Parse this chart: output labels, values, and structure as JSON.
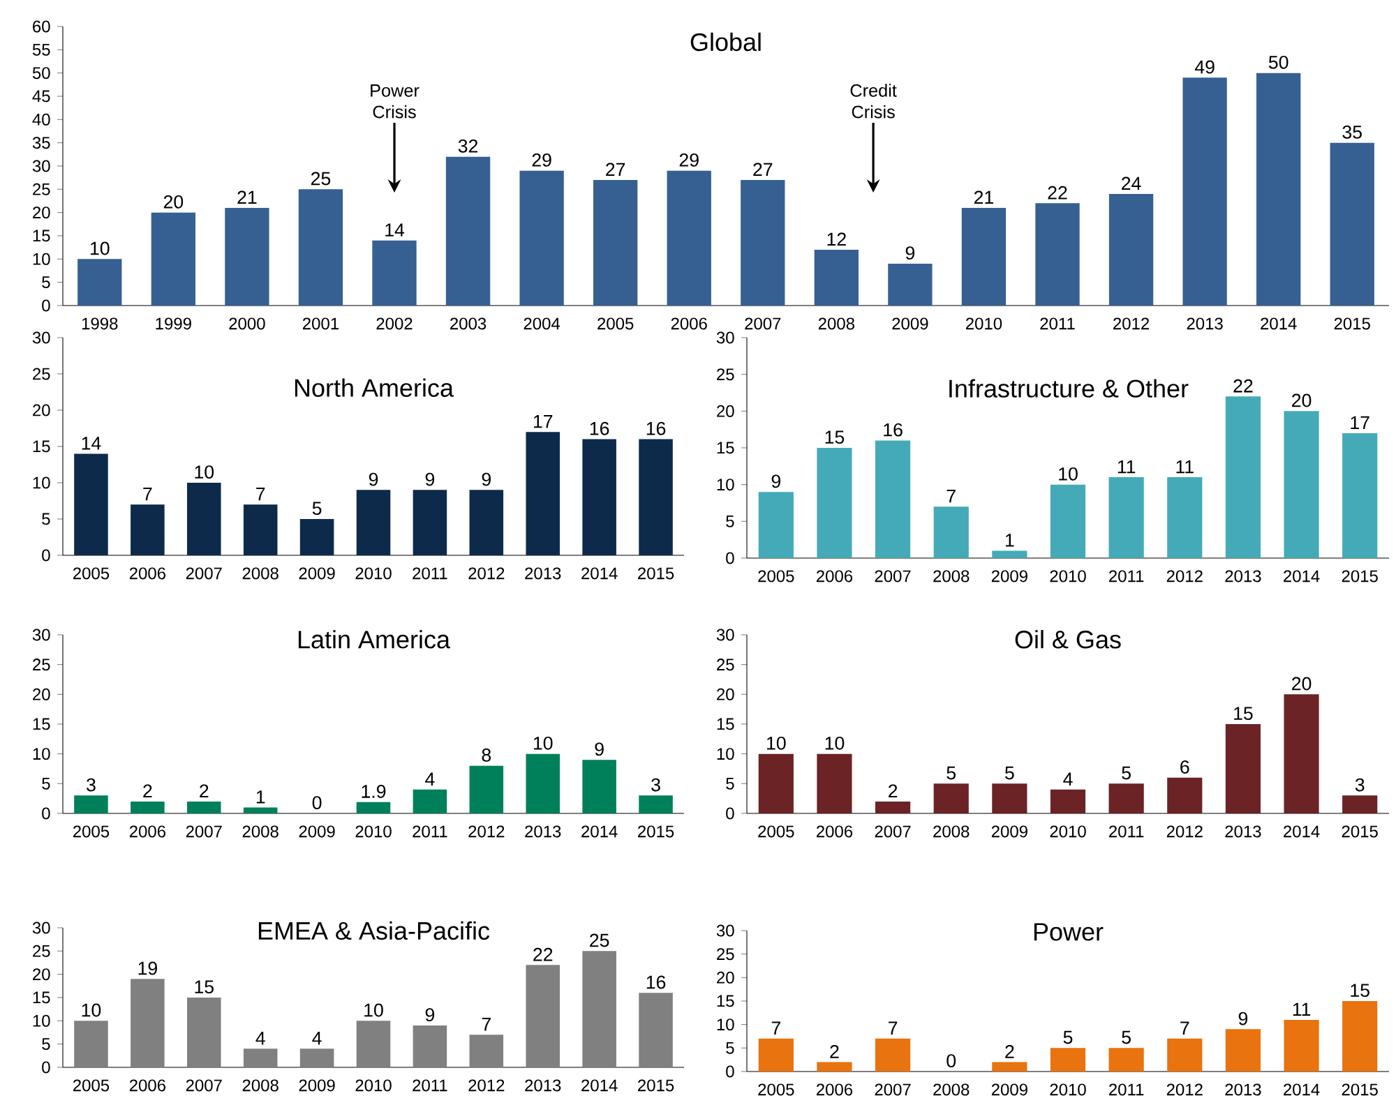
{
  "chart_data": [
    {
      "type": "bar",
      "title": "Global",
      "categories": [
        "1998",
        "1999",
        "2000",
        "2001",
        "2002",
        "2003",
        "2004",
        "2005",
        "2006",
        "2007",
        "2008",
        "2009",
        "2010",
        "2011",
        "2012",
        "2013",
        "2014",
        "2015"
      ],
      "values": [
        10,
        20,
        21,
        25,
        14,
        32,
        29,
        27,
        29,
        27,
        12,
        9,
        21,
        22,
        24,
        49,
        50,
        35
      ],
      "color": "#376092",
      "ylim": [
        0,
        60
      ],
      "yticks": [
        0,
        5,
        10,
        15,
        20,
        25,
        30,
        35,
        40,
        45,
        50,
        55,
        60
      ],
      "data_labels": true,
      "annotations": [
        "Power Crisis",
        "Credit Crisis"
      ]
    },
    {
      "type": "bar",
      "title": "North America",
      "categories": [
        "2005",
        "2006",
        "2007",
        "2008",
        "2009",
        "2010",
        "2011",
        "2012",
        "2013",
        "2014",
        "2015"
      ],
      "values": [
        14,
        7,
        10,
        7,
        5,
        9,
        9,
        9,
        17,
        16,
        16
      ],
      "color": "#0d2a4a",
      "ylim": [
        0,
        30
      ],
      "yticks": [
        0,
        5,
        10,
        15,
        20,
        25,
        30
      ],
      "data_labels": true
    },
    {
      "type": "bar",
      "title": "Infrastructure & Other",
      "categories": [
        "2005",
        "2006",
        "2007",
        "2008",
        "2009",
        "2010",
        "2011",
        "2012",
        "2013",
        "2014",
        "2015"
      ],
      "values": [
        9,
        15,
        16,
        7,
        1,
        10,
        11,
        11,
        22,
        20,
        17
      ],
      "color": "#45aab8",
      "ylim": [
        0,
        30
      ],
      "yticks": [
        0,
        5,
        10,
        15,
        20,
        25,
        30
      ],
      "data_labels": true
    },
    {
      "type": "bar",
      "title": "Latin America",
      "categories": [
        "2005",
        "2006",
        "2007",
        "2008",
        "2009",
        "2010",
        "2011",
        "2012",
        "2013",
        "2014",
        "2015"
      ],
      "values": [
        3,
        2,
        2,
        1,
        0,
        1.9,
        4,
        8,
        10,
        9,
        3
      ],
      "color": "#00805a",
      "ylim": [
        0,
        30
      ],
      "yticks": [
        0,
        5,
        10,
        15,
        20,
        25,
        30
      ],
      "data_labels": true
    },
    {
      "type": "bar",
      "title": "Oil & Gas",
      "categories": [
        "2005",
        "2006",
        "2007",
        "2008",
        "2009",
        "2010",
        "2011",
        "2012",
        "2013",
        "2014",
        "2015"
      ],
      "values": [
        10,
        10,
        2,
        5,
        5,
        4,
        5,
        6,
        15,
        20,
        3
      ],
      "color": "#6b2326",
      "ylim": [
        0,
        30
      ],
      "yticks": [
        0,
        5,
        10,
        15,
        20,
        25,
        30
      ],
      "data_labels": true
    },
    {
      "type": "bar",
      "title": "EMEA & Asia-Pacific",
      "categories": [
        "2005",
        "2006",
        "2007",
        "2008",
        "2009",
        "2010",
        "2011",
        "2012",
        "2013",
        "2014",
        "2015"
      ],
      "values": [
        10,
        19,
        15,
        4,
        4,
        10,
        9,
        7,
        22,
        25,
        16
      ],
      "color": "#808080",
      "ylim": [
        0,
        30
      ],
      "yticks": [
        0,
        5,
        10,
        15,
        20,
        25,
        30
      ],
      "data_labels": true
    },
    {
      "type": "bar",
      "title": "Power",
      "categories": [
        "2005",
        "2006",
        "2007",
        "2008",
        "2009",
        "2010",
        "2011",
        "2012",
        "2013",
        "2014",
        "2015"
      ],
      "values": [
        7,
        2,
        7,
        0,
        2,
        5,
        5,
        7,
        9,
        11,
        15
      ],
      "color": "#e8730f",
      "ylim": [
        0,
        30
      ],
      "yticks": [
        0,
        5,
        10,
        15,
        20,
        25,
        30
      ],
      "data_labels": true
    }
  ]
}
